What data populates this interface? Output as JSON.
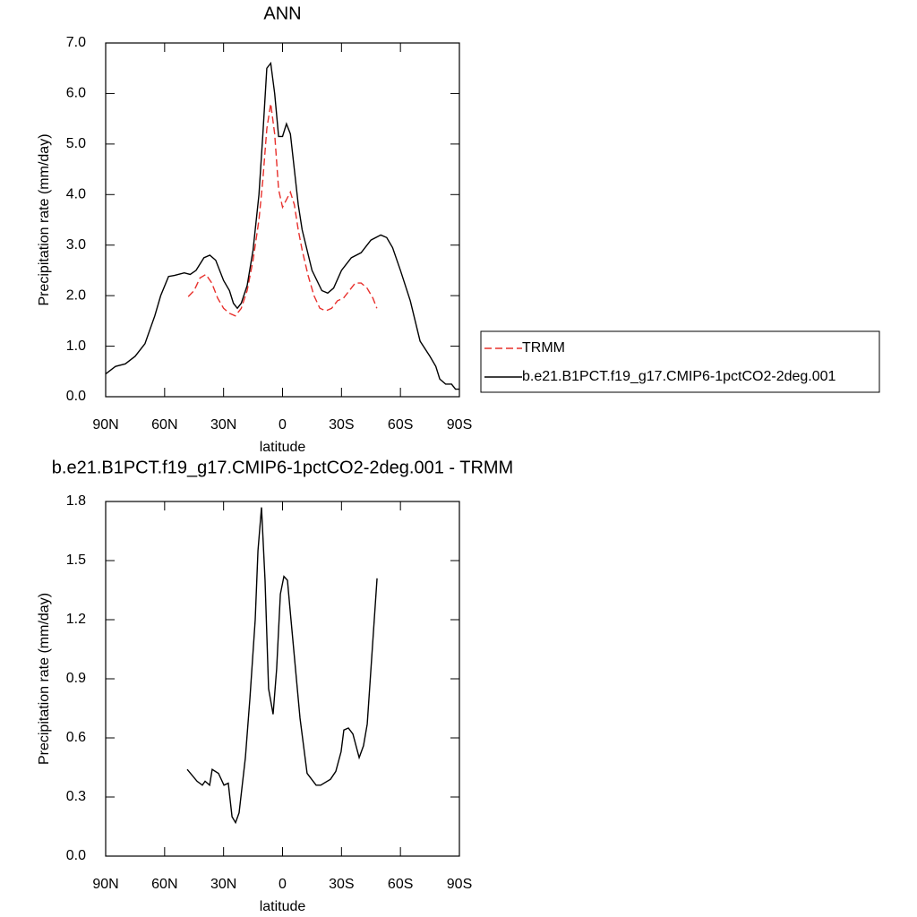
{
  "chart_data": [
    {
      "type": "line",
      "title": "ANN",
      "xlabel": "latitude",
      "ylabel": "Precipitation rate (mm/day)",
      "xlim": [
        90,
        -90
      ],
      "xticks": [
        {
          "value": 90,
          "label": "90N"
        },
        {
          "value": 60,
          "label": "60N"
        },
        {
          "value": 30,
          "label": "30N"
        },
        0,
        {
          "value": -30,
          "label": "30S"
        },
        {
          "value": -60,
          "label": "60S"
        },
        {
          "value": -90,
          "label": "90S"
        }
      ],
      "ylim": [
        0,
        7
      ],
      "yticks": [
        {
          "value": 0,
          "label": "0.0"
        },
        {
          "value": 1,
          "label": "1.0"
        },
        {
          "value": 2,
          "label": "2.0"
        },
        {
          "value": 3,
          "label": "3.0"
        },
        {
          "value": 4,
          "label": "4.0"
        },
        {
          "value": 5,
          "label": "5.0"
        },
        {
          "value": 6,
          "label": "6.0"
        },
        {
          "value": 7,
          "label": "7.0"
        }
      ],
      "legend": "right",
      "series": [
        {
          "name": "TRMM",
          "color": "#e8302c",
          "dash": true,
          "x": [
            48,
            45,
            42,
            39,
            36,
            33,
            30,
            27,
            24,
            21,
            18,
            15,
            12,
            10,
            8,
            6,
            4,
            2,
            0,
            -2,
            -4,
            -6,
            -8,
            -10,
            -13,
            -16,
            -19,
            -22,
            -25,
            -28,
            -31,
            -34,
            -37,
            -40,
            -43,
            -46,
            -48
          ],
          "values": [
            1.98,
            2.1,
            2.35,
            2.42,
            2.25,
            1.95,
            1.75,
            1.65,
            1.6,
            1.75,
            2.1,
            2.7,
            3.5,
            4.3,
            5.3,
            5.8,
            5.2,
            4.1,
            3.75,
            3.9,
            4.05,
            3.8,
            3.3,
            2.9,
            2.4,
            2.0,
            1.75,
            1.7,
            1.75,
            1.9,
            1.95,
            2.1,
            2.25,
            2.25,
            2.15,
            1.95,
            1.75
          ]
        },
        {
          "name": "b.e21.B1PCT.f19_g17.CMIP6-1pctCO2-2deg.001",
          "color": "#000000",
          "dash": false,
          "x": [
            90,
            85,
            80,
            75,
            70,
            65,
            62,
            58,
            55,
            50,
            47,
            44,
            40,
            37,
            34,
            30,
            27,
            25,
            23,
            21,
            18,
            15,
            12,
            10,
            8,
            6,
            4,
            2,
            0,
            -2,
            -4,
            -6,
            -8,
            -10,
            -15,
            -20,
            -23,
            -26,
            -30,
            -35,
            -40,
            -45,
            -50,
            -53,
            -56,
            -60,
            -65,
            -70,
            -75,
            -78,
            -80,
            -83,
            -86,
            -88,
            -90
          ],
          "values": [
            0.45,
            0.6,
            0.65,
            0.8,
            1.05,
            1.6,
            2.0,
            2.38,
            2.4,
            2.45,
            2.42,
            2.5,
            2.75,
            2.8,
            2.7,
            2.3,
            2.1,
            1.85,
            1.75,
            1.85,
            2.2,
            2.9,
            4.0,
            5.2,
            6.5,
            6.6,
            6.0,
            5.15,
            5.15,
            5.4,
            5.2,
            4.5,
            3.8,
            3.3,
            2.5,
            2.1,
            2.05,
            2.15,
            2.5,
            2.75,
            2.85,
            3.1,
            3.2,
            3.15,
            2.95,
            2.5,
            1.9,
            1.1,
            0.8,
            0.6,
            0.35,
            0.25,
            0.25,
            0.15,
            0.15
          ]
        }
      ]
    },
    {
      "type": "line",
      "title": "b.e21.B1PCT.f19_g17.CMIP6-1pctCO2-2deg.001 - TRMM",
      "xlabel": "latitude",
      "ylabel": "Precipitation rate (mm/day)",
      "xlim": [
        90,
        -90
      ],
      "xticks": [
        {
          "value": 90,
          "label": "90N"
        },
        {
          "value": 60,
          "label": "60N"
        },
        {
          "value": 30,
          "label": "30N"
        },
        0,
        {
          "value": -30,
          "label": "30S"
        },
        {
          "value": -60,
          "label": "60S"
        },
        {
          "value": -90,
          "label": "90S"
        }
      ],
      "ylim": [
        0,
        1.8
      ],
      "yticks": [
        {
          "value": 0,
          "label": "0.0"
        },
        {
          "value": 0.3,
          "label": "0.3"
        },
        {
          "value": 0.6,
          "label": "0.6"
        },
        {
          "value": 0.9,
          "label": "0.9"
        },
        {
          "value": 1.2,
          "label": "1.2"
        },
        {
          "value": 1.5,
          "label": "1.5"
        },
        {
          "value": 1.8,
          "label": "1.8"
        }
      ],
      "series": [
        {
          "color": "#000000",
          "dash": false,
          "x": [
            48.5,
            43.5,
            40.8,
            39.4,
            37.1,
            35.8,
            32.6,
            29.8,
            27.6,
            25.7,
            23.9,
            22.1,
            18.9,
            16.6,
            13.9,
            12.5,
            10.7,
            8.9,
            7.1,
            4.8,
            3.0,
            1.1,
            -0.7,
            -2.5,
            -4.3,
            -6.6,
            -8.9,
            -12.5,
            -17.1,
            -19.4,
            -24.4,
            -27.1,
            -29.8,
            -31.2,
            -33.5,
            -35.8,
            -39.0,
            -41.2,
            -43.1,
            -48.1
          ],
          "values": [
            0.44,
            0.38,
            0.36,
            0.38,
            0.36,
            0.44,
            0.42,
            0.36,
            0.37,
            0.2,
            0.17,
            0.22,
            0.5,
            0.8,
            1.2,
            1.55,
            1.77,
            1.4,
            0.85,
            0.72,
            0.95,
            1.33,
            1.42,
            1.4,
            1.2,
            0.95,
            0.7,
            0.42,
            0.36,
            0.36,
            0.39,
            0.43,
            0.53,
            0.64,
            0.65,
            0.62,
            0.5,
            0.56,
            0.67,
            1.41
          ]
        }
      ]
    }
  ]
}
